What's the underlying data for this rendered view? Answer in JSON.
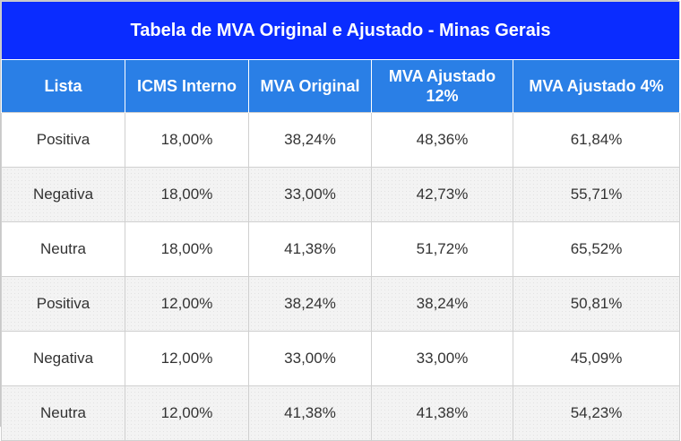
{
  "title": "Tabela de MVA Original e Ajustado - Minas Gerais",
  "headers": [
    "Lista",
    "ICMS Interno",
    "MVA Original",
    "MVA Ajustado 12%",
    "MVA Ajustado 4%"
  ],
  "rows": [
    [
      "Positiva",
      "18,00%",
      "38,24%",
      "48,36%",
      "61,84%"
    ],
    [
      "Negativa",
      "18,00%",
      "33,00%",
      "42,73%",
      "55,71%"
    ],
    [
      "Neutra",
      "18,00%",
      "41,38%",
      "51,72%",
      "65,52%"
    ],
    [
      "Positiva",
      "12,00%",
      "38,24%",
      "38,24%",
      "50,81%"
    ],
    [
      "Negativa",
      "12,00%",
      "33,00%",
      "33,00%",
      "45,09%"
    ],
    [
      "Neutra",
      "12,00%",
      "41,38%",
      "41,38%",
      "54,23%"
    ]
  ]
}
